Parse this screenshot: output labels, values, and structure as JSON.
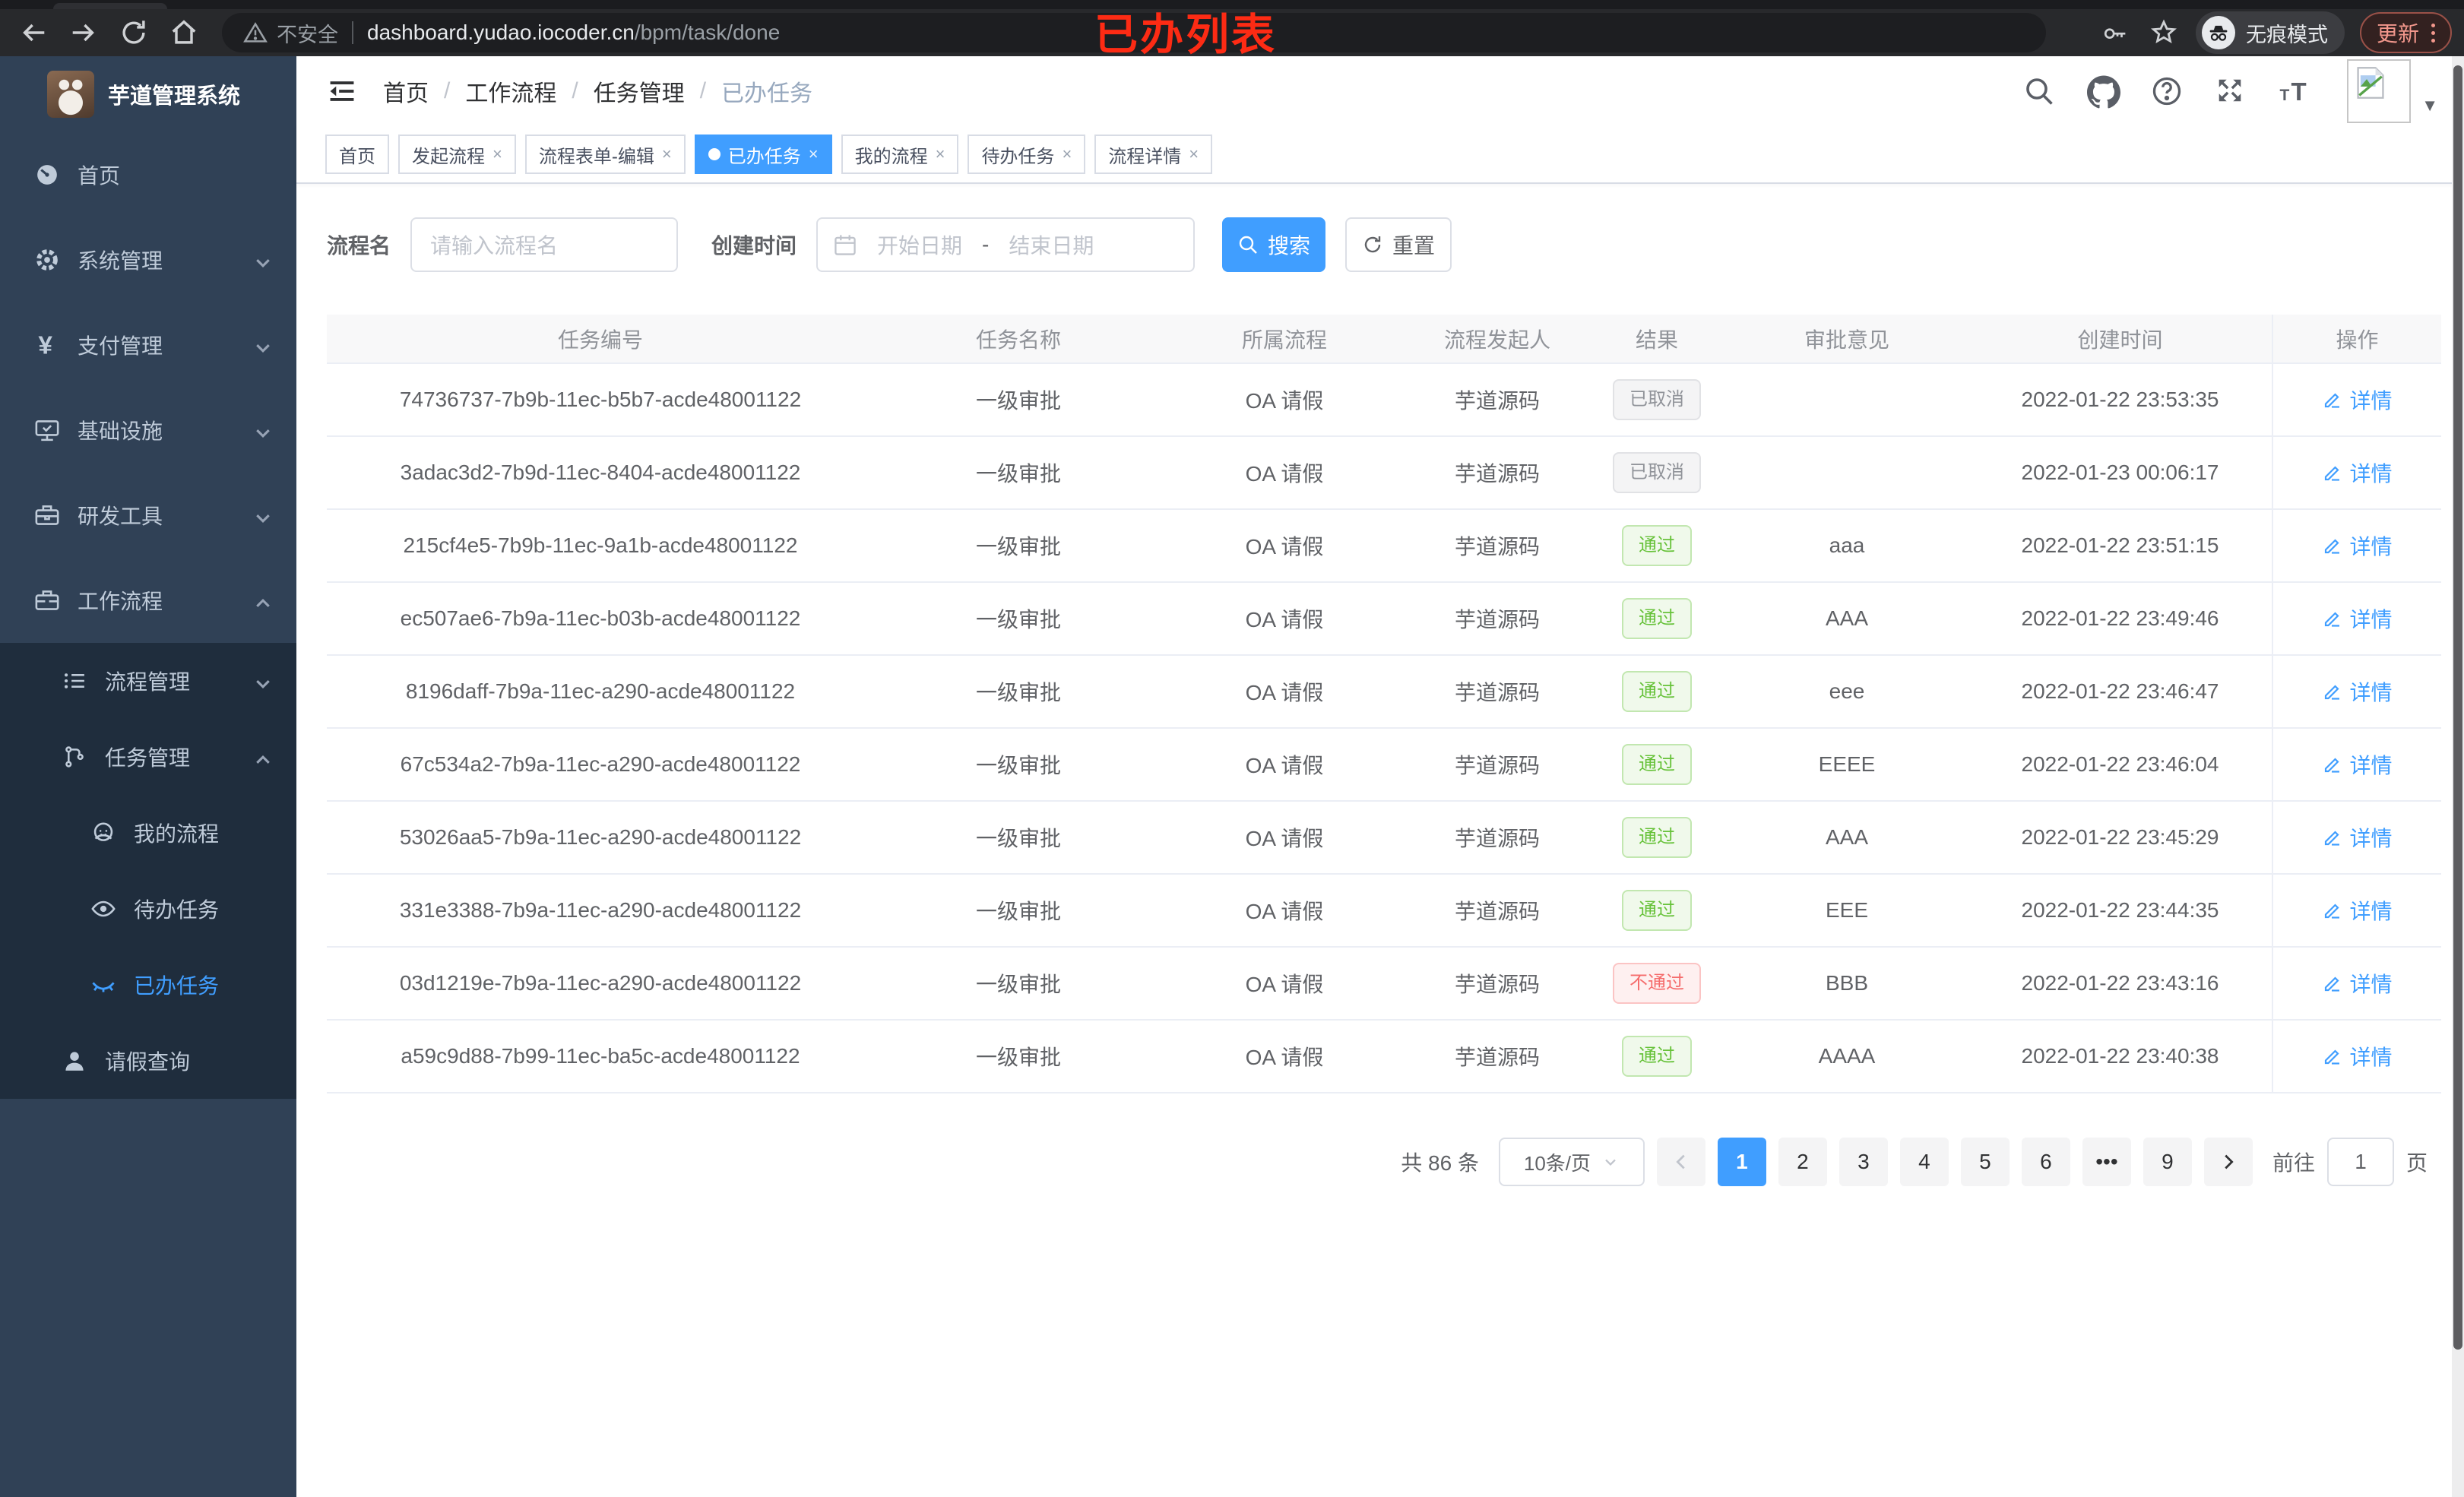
{
  "browser": {
    "security_label": "不安全",
    "url_host": "dashboard.yudao.iocoder.cn",
    "url_path": "/bpm/task/done",
    "incognito_label": "无痕模式",
    "update_label": "更新"
  },
  "annotation": "已办列表",
  "colors": {
    "accent": "#409eff",
    "sidebar_bg": "#304156",
    "submenu_bg": "#1f2d3d",
    "success": "#67c23a",
    "danger": "#f56c6c",
    "info": "#909399",
    "annotation_red": "#fd2b14"
  },
  "sidebar": {
    "logo_title": "芋道管理系统",
    "items": [
      {
        "label": "首页",
        "icon": "dashboard-icon",
        "depth": 0,
        "chevron": "",
        "submenu": false,
        "active": false
      },
      {
        "label": "系统管理",
        "icon": "gear-icon",
        "depth": 0,
        "chevron": "down",
        "submenu": false,
        "active": false
      },
      {
        "label": "支付管理",
        "icon": "yen-icon",
        "depth": 0,
        "chevron": "down",
        "submenu": false,
        "active": false
      },
      {
        "label": "基础设施",
        "icon": "monitor-icon",
        "depth": 0,
        "chevron": "down",
        "submenu": false,
        "active": false
      },
      {
        "label": "研发工具",
        "icon": "toolbox-icon",
        "depth": 0,
        "chevron": "down",
        "submenu": false,
        "active": false
      },
      {
        "label": "工作流程",
        "icon": "briefcase-icon",
        "depth": 0,
        "chevron": "up",
        "submenu": false,
        "active": false
      },
      {
        "label": "流程管理",
        "icon": "list-icon",
        "depth": 1,
        "chevron": "down",
        "submenu": true,
        "active": false
      },
      {
        "label": "任务管理",
        "icon": "workflow-icon",
        "depth": 1,
        "chevron": "up",
        "submenu": true,
        "active": false
      },
      {
        "label": "我的流程",
        "icon": "face-icon",
        "depth": 2,
        "chevron": "",
        "submenu": true,
        "active": false
      },
      {
        "label": "待办任务",
        "icon": "eye-open-icon",
        "depth": 2,
        "chevron": "",
        "submenu": true,
        "active": false
      },
      {
        "label": "已办任务",
        "icon": "eye-closed-icon",
        "depth": 2,
        "chevron": "",
        "submenu": true,
        "active": true
      },
      {
        "label": "请假查询",
        "icon": "user-icon",
        "depth": 1,
        "chevron": "",
        "submenu": true,
        "active": false
      }
    ]
  },
  "breadcrumb": [
    "首页",
    "工作流程",
    "任务管理",
    "已办任务"
  ],
  "navbar_icons": [
    "search-icon",
    "github-icon",
    "help-icon",
    "fullscreen-icon",
    "font-size-icon"
  ],
  "tabs": [
    {
      "label": "首页",
      "closable": false,
      "active": false
    },
    {
      "label": "发起流程",
      "closable": true,
      "active": false
    },
    {
      "label": "流程表单-编辑",
      "closable": true,
      "active": false
    },
    {
      "label": "已办任务",
      "closable": true,
      "active": true
    },
    {
      "label": "我的流程",
      "closable": true,
      "active": false
    },
    {
      "label": "待办任务",
      "closable": true,
      "active": false
    },
    {
      "label": "流程详情",
      "closable": true,
      "active": false
    }
  ],
  "filters": {
    "name_label": "流程名",
    "name_placeholder": "请输入流程名",
    "time_label": "创建时间",
    "start_placeholder": "开始日期",
    "range_separator": "-",
    "end_placeholder": "结束日期",
    "search_label": "搜索",
    "reset_label": "重置"
  },
  "table": {
    "columns": [
      "任务编号",
      "任务名称",
      "所属流程",
      "流程发起人",
      "结果",
      "审批意见",
      "创建时间",
      "操作"
    ],
    "detail_label": "详情",
    "rows": [
      {
        "id": "74736737-7b9b-11ec-b5b7-acde48001122",
        "name": "一级审批",
        "process": "OA 请假",
        "initiator": "芋道源码",
        "result": "已取消",
        "result_type": "cancelled",
        "comment": "",
        "created": "2022-01-22 23:53:35"
      },
      {
        "id": "3adac3d2-7b9d-11ec-8404-acde48001122",
        "name": "一级审批",
        "process": "OA 请假",
        "initiator": "芋道源码",
        "result": "已取消",
        "result_type": "cancelled",
        "comment": "",
        "created": "2022-01-23 00:06:17"
      },
      {
        "id": "215cf4e5-7b9b-11ec-9a1b-acde48001122",
        "name": "一级审批",
        "process": "OA 请假",
        "initiator": "芋道源码",
        "result": "通过",
        "result_type": "pass",
        "comment": "aaa",
        "created": "2022-01-22 23:51:15"
      },
      {
        "id": "ec507ae6-7b9a-11ec-b03b-acde48001122",
        "name": "一级审批",
        "process": "OA 请假",
        "initiator": "芋道源码",
        "result": "通过",
        "result_type": "pass",
        "comment": "AAA",
        "created": "2022-01-22 23:49:46"
      },
      {
        "id": "8196daff-7b9a-11ec-a290-acde48001122",
        "name": "一级审批",
        "process": "OA 请假",
        "initiator": "芋道源码",
        "result": "通过",
        "result_type": "pass",
        "comment": "eee",
        "created": "2022-01-22 23:46:47"
      },
      {
        "id": "67c534a2-7b9a-11ec-a290-acde48001122",
        "name": "一级审批",
        "process": "OA 请假",
        "initiator": "芋道源码",
        "result": "通过",
        "result_type": "pass",
        "comment": "EEEE",
        "created": "2022-01-22 23:46:04"
      },
      {
        "id": "53026aa5-7b9a-11ec-a290-acde48001122",
        "name": "一级审批",
        "process": "OA 请假",
        "initiator": "芋道源码",
        "result": "通过",
        "result_type": "pass",
        "comment": "AAA",
        "created": "2022-01-22 23:45:29"
      },
      {
        "id": "331e3388-7b9a-11ec-a290-acde48001122",
        "name": "一级审批",
        "process": "OA 请假",
        "initiator": "芋道源码",
        "result": "通过",
        "result_type": "pass",
        "comment": "EEE",
        "created": "2022-01-22 23:44:35"
      },
      {
        "id": "03d1219e-7b9a-11ec-a290-acde48001122",
        "name": "一级审批",
        "process": "OA 请假",
        "initiator": "芋道源码",
        "result": "不通过",
        "result_type": "fail",
        "comment": "BBB",
        "created": "2022-01-22 23:43:16"
      },
      {
        "id": "a59c9d88-7b99-11ec-ba5c-acde48001122",
        "name": "一级审批",
        "process": "OA 请假",
        "initiator": "芋道源码",
        "result": "通过",
        "result_type": "pass",
        "comment": "AAAA",
        "created": "2022-01-22 23:40:38"
      }
    ]
  },
  "pagination": {
    "total_label": "共 86 条",
    "page_size": "10条/页",
    "pages": [
      "1",
      "2",
      "3",
      "4",
      "5",
      "6",
      "•••",
      "9"
    ],
    "active_page": "1",
    "goto_label": "前往",
    "goto_value": "1",
    "page_unit": "页"
  }
}
